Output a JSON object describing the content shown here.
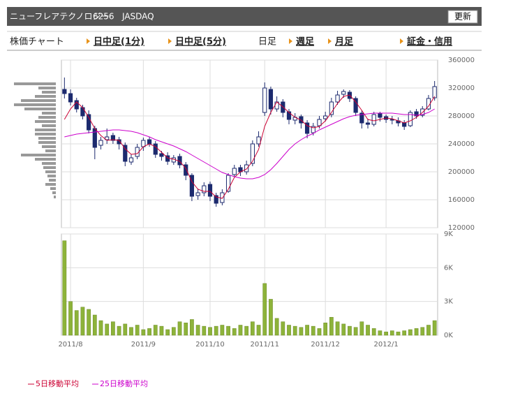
{
  "header": {
    "name": "ニューフレアテクノロジー",
    "code": "6256",
    "market": "JASDAQ",
    "button": "更新"
  },
  "tabs": [
    "株価チャート",
    "日中足(1分)",
    "日中足(5分)",
    "日足",
    "週足",
    "月足",
    "証金・信用"
  ],
  "chart_data": {
    "type": "candlestick",
    "categories": [
      null,
      "2011/8",
      null,
      null,
      null,
      null,
      null,
      null,
      null,
      null,
      null,
      null,
      null,
      "2011/9",
      null,
      null,
      null,
      null,
      null,
      null,
      null,
      null,
      null,
      null,
      "2011/10",
      null,
      null,
      null,
      null,
      null,
      null,
      null,
      null,
      "2011/11",
      null,
      null,
      null,
      null,
      null,
      null,
      null,
      null,
      null,
      "2011/12",
      null,
      null,
      null,
      null,
      null,
      null,
      null,
      null,
      null,
      "2012/1",
      null,
      null,
      null,
      null,
      null,
      null,
      null,
      null
    ],
    "open": [
      318000,
      312000,
      302000,
      292000,
      282000,
      262000,
      238000,
      246000,
      252000,
      246000,
      238000,
      214000,
      222000,
      236000,
      246000,
      240000,
      226000,
      223000,
      214000,
      222000,
      210000,
      195000,
      166000,
      170000,
      182000,
      166000,
      156000,
      172000,
      196000,
      206000,
      200000,
      212000,
      240000,
      285000,
      318000,
      290000,
      300000,
      286000,
      274000,
      279000,
      270000,
      256000,
      266000,
      276000,
      282000,
      300000,
      311000,
      314000,
      305000,
      284000,
      270000,
      268000,
      283000,
      279000,
      275000,
      273000,
      270000,
      266000,
      286000,
      281000,
      290000,
      306000
    ],
    "high": [
      335000,
      318000,
      306000,
      296000,
      288000,
      266000,
      250000,
      262000,
      256000,
      250000,
      242000,
      225000,
      240000,
      249000,
      250000,
      244000,
      230000,
      228000,
      224000,
      226000,
      214000,
      198000,
      176000,
      185000,
      186000,
      170000,
      175000,
      198000,
      210000,
      210000,
      216000,
      245000,
      258000,
      328000,
      322000,
      308000,
      304000,
      290000,
      284000,
      282000,
      274000,
      270000,
      280000,
      286000,
      306000,
      316000,
      318000,
      317000,
      308000,
      288000,
      276000,
      286000,
      286000,
      282000,
      280000,
      278000,
      274000,
      288000,
      290000,
      294000,
      310000,
      330000
    ],
    "low": [
      305000,
      295000,
      285000,
      275000,
      255000,
      218000,
      232000,
      240000,
      240000,
      232000,
      208000,
      210000,
      218000,
      230000,
      236000,
      220000,
      216000,
      210000,
      210000,
      205000,
      188000,
      158000,
      160000,
      165000,
      158000,
      150000,
      152000,
      170000,
      192000,
      194000,
      196000,
      208000,
      236000,
      280000,
      282000,
      286000,
      278000,
      268000,
      268000,
      262000,
      248000,
      252000,
      262000,
      272000,
      278000,
      296000,
      306000,
      300000,
      280000,
      262000,
      262000,
      265000,
      272000,
      270000,
      268000,
      265000,
      260000,
      264000,
      276000,
      278000,
      288000,
      302000
    ],
    "close": [
      312000,
      300000,
      290000,
      280000,
      260000,
      235000,
      245000,
      250000,
      245000,
      240000,
      215000,
      220000,
      235000,
      245000,
      240000,
      225000,
      222000,
      215000,
      220000,
      210000,
      195000,
      165000,
      170000,
      180000,
      165000,
      155000,
      170000,
      195000,
      205000,
      200000,
      210000,
      240000,
      250000,
      320000,
      290000,
      300000,
      285000,
      275000,
      278000,
      270000,
      255000,
      265000,
      275000,
      280000,
      300000,
      310000,
      315000,
      305000,
      285000,
      270000,
      268000,
      282000,
      278000,
      275000,
      274000,
      270000,
      265000,
      285000,
      280000,
      290000,
      305000,
      322000
    ],
    "candle_color": "#1c2a6e",
    "ylim": [
      120000,
      360000
    ],
    "yticks": [
      120000,
      160000,
      200000,
      240000,
      280000,
      320000,
      360000
    ],
    "grid": true,
    "series": [
      {
        "name": "5日移動平均",
        "color": "#cc0033",
        "values": [
          275000,
          290000,
          300000,
          292000,
          278000,
          262000,
          252000,
          245000,
          246000,
          245000,
          233000,
          225000,
          226000,
          236000,
          240000,
          236000,
          228000,
          220000,
          218000,
          215000,
          205000,
          186000,
          175000,
          172000,
          172000,
          164000,
          162000,
          175000,
          192000,
          200000,
          204000,
          215000,
          232000,
          265000,
          285000,
          300000,
          293000,
          285000,
          278000,
          274000,
          266000,
          263000,
          265000,
          273000,
          285000,
          298000,
          308000,
          310000,
          300000,
          288000,
          275000,
          273000,
          275000,
          277000,
          276000,
          273000,
          270000,
          273000,
          278000,
          285000,
          294000,
          308000
        ]
      },
      {
        "name": "25日移動平均",
        "color": "#cc00cc",
        "values": [
          250000,
          252000,
          254000,
          255000,
          256000,
          257000,
          258000,
          259000,
          260000,
          260000,
          259000,
          258000,
          256000,
          253000,
          250000,
          246000,
          243000,
          240000,
          237000,
          233000,
          229000,
          224000,
          219000,
          214000,
          209000,
          204000,
          199000,
          196000,
          193000,
          191000,
          190000,
          190000,
          192000,
          196000,
          203000,
          212000,
          222000,
          232000,
          240000,
          246000,
          251000,
          255000,
          260000,
          264000,
          268000,
          272000,
          276000,
          279000,
          281000,
          282000,
          283000,
          284000,
          284000,
          284000,
          284000,
          283000,
          282000,
          282000,
          281000,
          282000,
          285000,
          290000
        ]
      }
    ],
    "volume": {
      "color": "#8db33a",
      "values": [
        8400,
        3000,
        2200,
        2500,
        2300,
        1800,
        1300,
        1000,
        1200,
        800,
        1000,
        700,
        900,
        500,
        600,
        900,
        800,
        500,
        700,
        1200,
        1100,
        1400,
        900,
        800,
        700,
        800,
        900,
        800,
        600,
        900,
        800,
        1200,
        900,
        4600,
        3200,
        1500,
        1200,
        900,
        800,
        700,
        900,
        800,
        600,
        1100,
        1600,
        1200,
        1000,
        800,
        700,
        1200,
        900,
        600,
        400,
        300,
        400,
        300,
        400,
        500,
        600,
        700,
        900,
        1300
      ],
      "ylim": [
        0,
        9000
      ],
      "yticks": [
        {
          "value": 0,
          "label": "0K"
        },
        {
          "value": 3000,
          "label": "3K"
        },
        {
          "value": 6000,
          "label": "6K"
        },
        {
          "value": 9000,
          "label": "9K"
        }
      ]
    },
    "volume_profile": {
      "color": "#999999",
      "prices": [
        326000,
        320000,
        314000,
        308000,
        302000,
        296000,
        290000,
        284000,
        278000,
        272000,
        266000,
        260000,
        254000,
        248000,
        242000,
        236000,
        230000,
        224000,
        218000,
        212000,
        206000,
        200000,
        194000,
        188000,
        182000,
        176000,
        170000,
        164000
      ],
      "values": [
        60,
        25,
        20,
        30,
        50,
        60,
        45,
        20,
        25,
        30,
        20,
        30,
        30,
        25,
        25,
        20,
        15,
        50,
        30,
        20,
        18,
        15,
        12,
        10,
        15,
        8,
        5,
        3
      ]
    }
  }
}
